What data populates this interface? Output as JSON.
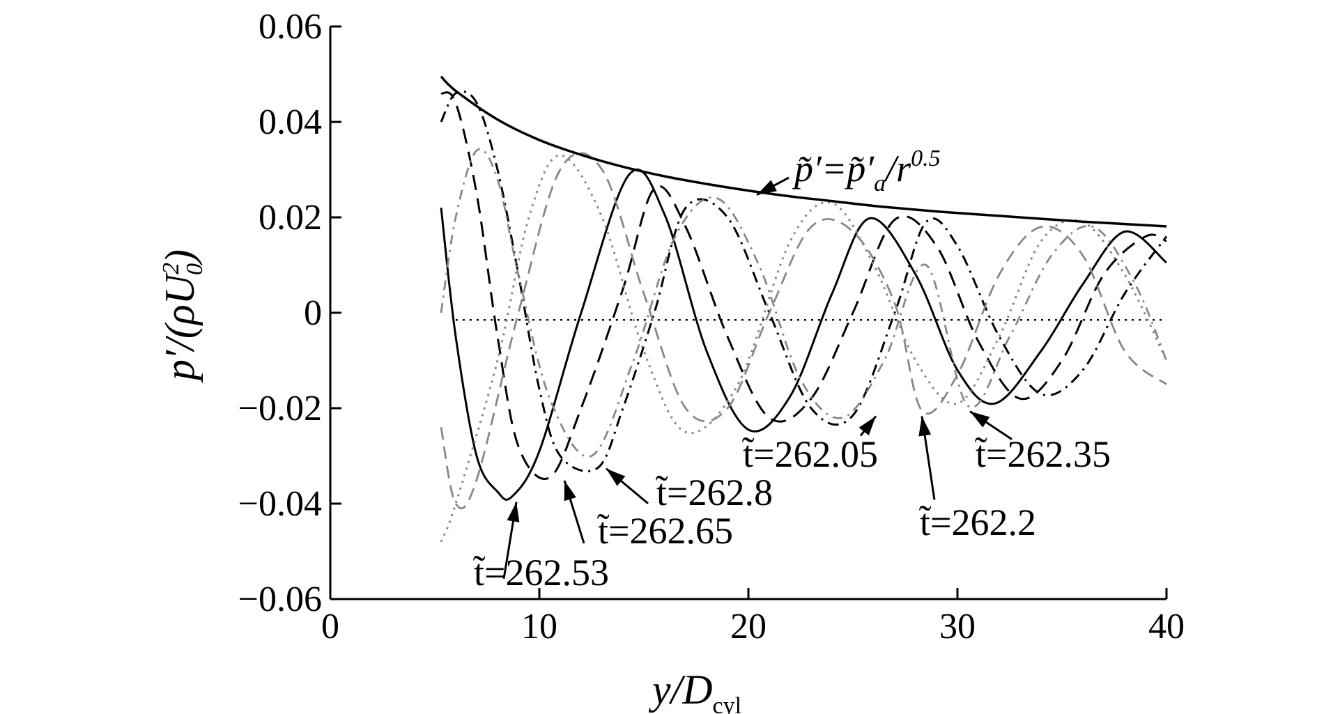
{
  "chart_data": {
    "type": "line",
    "xlabel": "y/D",
    "xlabel_sub": "cyl",
    "ylabel": "p′/(ρU",
    "ylabel_sup": "2",
    "ylabel_sub": "0",
    "ylabel_close": ")",
    "xlim": [
      0,
      40
    ],
    "ylim": [
      -0.06,
      0.06
    ],
    "xticks": [
      0,
      10,
      20,
      30,
      40
    ],
    "xtick_labels": [
      "0",
      "10",
      "20",
      "30",
      "40"
    ],
    "yticks": [
      0.06,
      0.04,
      0.02,
      0,
      -0.02,
      -0.04,
      -0.06
    ],
    "ytick_labels": [
      "0.06",
      "0.04",
      "0.02",
      "0",
      "−0.02",
      "−0.04",
      "−0.06"
    ],
    "grid": false,
    "envelope": {
      "label_main": "p̃′=p̃′",
      "label_sub": "a",
      "label_mid": "/r",
      "label_sup": "0.5",
      "x": [
        5.3,
        6,
        8,
        10,
        12,
        14,
        16,
        18,
        20,
        22,
        24,
        26,
        28,
        30,
        32,
        34,
        36,
        38,
        40
      ],
      "values": [
        0.0495,
        0.0465,
        0.0405,
        0.0362,
        0.0331,
        0.0306,
        0.0286,
        0.027,
        0.0256,
        0.0244,
        0.0234,
        0.0224,
        0.0216,
        0.0209,
        0.0203,
        0.0197,
        0.0191,
        0.0186,
        0.0181
      ]
    },
    "zero_line": {
      "x": [
        6,
        40
      ],
      "values": [
        -0.0015,
        -0.0015
      ]
    },
    "series": [
      {
        "name": "t̃=262.53",
        "label_x": 8.7,
        "label_y": -0.0385,
        "x": [
          5.3,
          6,
          7,
          8,
          8.7,
          10,
          12,
          14.3,
          16,
          18,
          20,
          22,
          24,
          25.8,
          28,
          30,
          31.8,
          34,
          36,
          38,
          40
        ],
        "values": [
          0.022,
          -0.005,
          -0.03,
          -0.0375,
          -0.0385,
          -0.029,
          0.0,
          0.029,
          0.0205,
          -0.008,
          -0.0245,
          -0.0175,
          0.004,
          0.0198,
          0.008,
          -0.012,
          -0.019,
          -0.008,
          0.006,
          0.017,
          0.0105
        ]
      },
      {
        "name": "t̃=262.65",
        "label_x": 10.5,
        "label_y": -0.0345,
        "x": [
          5.3,
          6,
          7,
          8,
          9,
          10.5,
          12,
          14,
          15.5,
          17,
          19,
          21,
          23,
          25,
          27,
          29,
          31,
          33,
          35,
          37,
          39,
          40
        ],
        "values": [
          0.046,
          0.044,
          0.025,
          -0.005,
          -0.028,
          -0.0345,
          -0.02,
          0.005,
          0.026,
          0.018,
          -0.005,
          -0.022,
          -0.018,
          0.0,
          0.0195,
          0.014,
          -0.006,
          -0.018,
          -0.01,
          0.008,
          0.016,
          0.015
        ]
      },
      {
        "name": "t̃=262.8",
        "label_x": 12.8,
        "label_y": -0.0325,
        "x": [
          5.3,
          6,
          7,
          8,
          9,
          10,
          11,
          12.8,
          14,
          15.5,
          17,
          19,
          21,
          23,
          25,
          27,
          28.5,
          30,
          32,
          34,
          36,
          38,
          40
        ],
        "values": [
          0.04,
          0.046,
          0.044,
          0.03,
          0.008,
          -0.016,
          -0.03,
          -0.0325,
          -0.02,
          0.0,
          0.022,
          0.02,
          0.0,
          -0.02,
          -0.0215,
          0.0,
          0.019,
          0.014,
          -0.005,
          -0.017,
          -0.012,
          0.004,
          0.016
        ]
      },
      {
        "name": "t̃=262.05",
        "label_x": 26,
        "label_y": -0.0205,
        "x": [
          5.3,
          6,
          8,
          9.5,
          11,
          13,
          15,
          17,
          19.5,
          22,
          24,
          26,
          28,
          30,
          32,
          34,
          36,
          38,
          40
        ],
        "values": [
          -0.048,
          -0.04,
          -0.01,
          0.02,
          0.033,
          0.02,
          -0.008,
          -0.025,
          -0.015,
          0.015,
          0.023,
          0.01,
          -0.01,
          -0.019,
          -0.005,
          0.015,
          0.019,
          0.008,
          -0.01
        ]
      },
      {
        "name": "t̃=262.2",
        "label_x": 28.3,
        "label_y": -0.0205,
        "x": [
          5.3,
          6,
          7,
          9,
          11,
          13,
          15,
          17,
          19,
          21,
          23,
          25,
          27,
          28.3,
          30,
          32,
          34,
          36,
          38,
          40
        ],
        "values": [
          -0.024,
          -0.04,
          -0.035,
          0.0,
          0.03,
          0.03,
          0.004,
          -0.02,
          -0.02,
          0.0,
          0.018,
          0.017,
          0.002,
          -0.0205,
          -0.013,
          0.008,
          0.018,
          0.012,
          -0.008,
          -0.015
        ]
      },
      {
        "name": "t̃=262.35",
        "label_x": 30.5,
        "label_y": -0.0195,
        "x": [
          5.3,
          6,
          7,
          8,
          9,
          10.5,
          12.5,
          14.5,
          16.5,
          18.5,
          20.5,
          22.5,
          24.5,
          26.5,
          28.5,
          30.5,
          32.5,
          34.5,
          36.5,
          38.5,
          40
        ],
        "values": [
          0.0,
          0.02,
          0.034,
          0.028,
          0.008,
          -0.018,
          -0.03,
          -0.01,
          0.016,
          0.024,
          0.01,
          -0.014,
          -0.022,
          -0.01,
          0.01,
          -0.0195,
          -0.005,
          0.012,
          0.018,
          0.006,
          -0.01
        ]
      }
    ],
    "annotations": [
      {
        "text": "t̃=262.53",
        "arrow_to": [
          8.9,
          -0.0385
        ]
      },
      {
        "text": "t̃=262.65",
        "arrow_to": [
          11.2,
          -0.034
        ]
      },
      {
        "text": "t̃=262.8",
        "arrow_to": [
          13.2,
          -0.0315
        ]
      },
      {
        "text": "t̃=262.05",
        "arrow_to": [
          26.1,
          -0.0205
        ]
      },
      {
        "text": "t̃=262.2",
        "arrow_to": [
          28.3,
          -0.0205
        ]
      },
      {
        "text": "t̃=262.35",
        "arrow_to": [
          30.6,
          -0.0195
        ]
      }
    ]
  }
}
